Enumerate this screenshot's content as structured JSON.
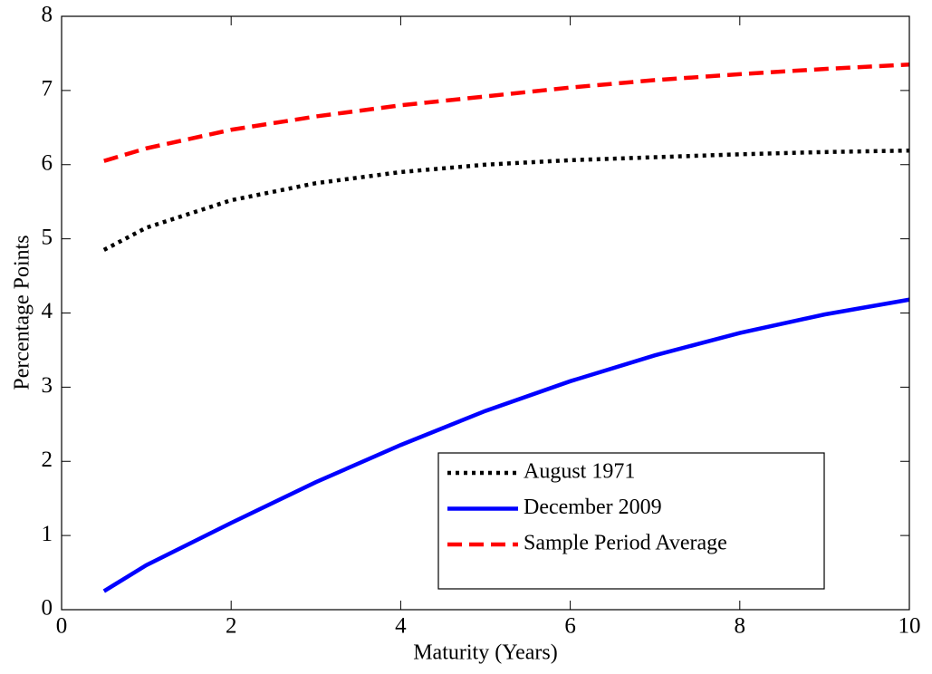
{
  "chart_data": {
    "type": "line",
    "xlabel": "Maturity (Years)",
    "ylabel": "Percentage Points",
    "x": [
      0.5,
      1,
      2,
      3,
      4,
      5,
      6,
      7,
      8,
      9,
      10
    ],
    "series": [
      {
        "name": "August 1971",
        "color": "#000000",
        "style": "dotted",
        "values": [
          4.85,
          5.15,
          5.52,
          5.75,
          5.9,
          6.0,
          6.06,
          6.1,
          6.14,
          6.17,
          6.19
        ]
      },
      {
        "name": "December 2009",
        "color": "#0000ff",
        "style": "solid",
        "values": [
          0.25,
          0.6,
          1.17,
          1.72,
          2.22,
          2.68,
          3.08,
          3.43,
          3.73,
          3.98,
          4.18
        ]
      },
      {
        "name": "Sample Period Average",
        "color": "#ff0000",
        "style": "dashed",
        "values": [
          6.05,
          6.22,
          6.47,
          6.65,
          6.8,
          6.92,
          7.04,
          7.14,
          7.22,
          7.29,
          7.35
        ]
      }
    ],
    "xlim": [
      0,
      10
    ],
    "xticks": [
      0,
      2,
      4,
      6,
      8,
      10
    ],
    "ylim": [
      0,
      8
    ],
    "yticks": [
      0,
      1,
      2,
      3,
      4,
      5,
      6,
      7,
      8
    ],
    "grid": false,
    "legend_position": "lower right"
  }
}
